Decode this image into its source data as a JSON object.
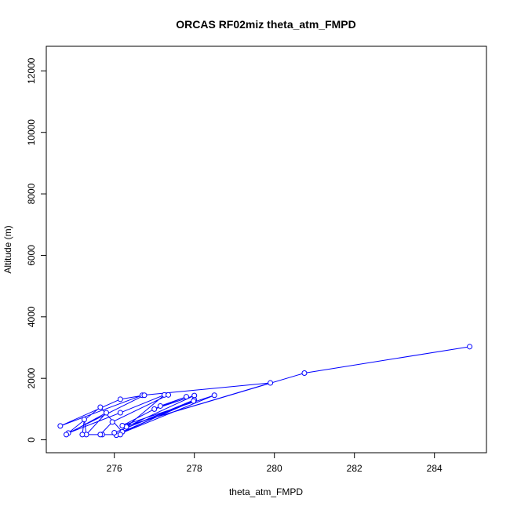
{
  "chart_data": {
    "type": "line",
    "title": "ORCAS RF02miz theta_atm_FMPD",
    "xlabel": "theta_atm_FMPD",
    "ylabel": "Altitude (m)",
    "xlim": [
      274.3,
      285.3
    ],
    "ylim": [
      -420,
      12800
    ],
    "xticks": [
      276,
      278,
      280,
      282,
      284
    ],
    "yticks": [
      0,
      2000,
      4000,
      6000,
      8000,
      10000,
      12000
    ],
    "grid": false,
    "series": [
      {
        "color": "#0000ff",
        "marker": "open-circle",
        "points": [
          [
            284.88,
            3030
          ],
          [
            280.75,
            2170
          ],
          [
            276.3,
            450
          ],
          [
            279.9,
            1850
          ],
          [
            276.7,
            1450
          ],
          [
            274.65,
            450
          ],
          [
            276.15,
            1320
          ],
          [
            276.75,
            1450
          ],
          [
            274.85,
            220
          ],
          [
            276.15,
            880
          ],
          [
            277.25,
            1460
          ],
          [
            276.3,
            420
          ],
          [
            278.0,
            1440
          ],
          [
            277.0,
            1000
          ],
          [
            277.8,
            1400
          ],
          [
            277.15,
            1100
          ],
          [
            276.2,
            460
          ],
          [
            278.5,
            1450
          ],
          [
            276.05,
            150
          ],
          [
            278.0,
            1300
          ],
          [
            276.0,
            230
          ],
          [
            277.98,
            1260
          ],
          [
            276.2,
            260
          ],
          [
            275.65,
            1060
          ],
          [
            274.8,
            170
          ],
          [
            275.8,
            880
          ],
          [
            275.3,
            170
          ],
          [
            275.25,
            660
          ],
          [
            275.2,
            170
          ],
          [
            275.7,
            170
          ],
          [
            276.15,
            170
          ],
          [
            275.65,
            170
          ],
          [
            275.95,
            580
          ],
          [
            277.35,
            1460
          ]
        ]
      }
    ]
  }
}
